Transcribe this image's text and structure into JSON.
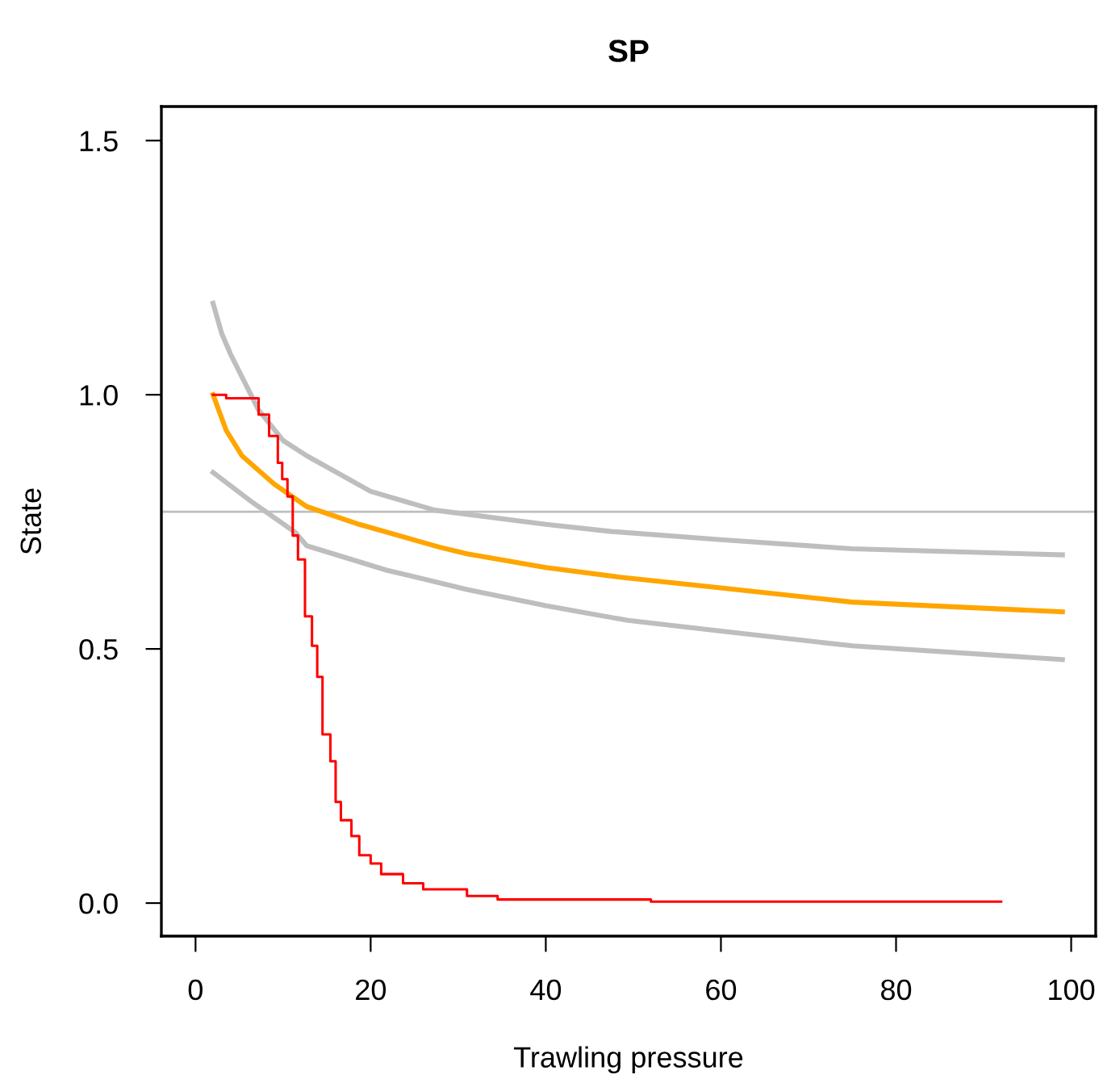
{
  "chart_data": {
    "type": "line",
    "title": "SP",
    "xlabel": "Trawling pressure",
    "ylabel": "State",
    "xlim": [
      -3.9,
      102.8
    ],
    "ylim": [
      -0.065,
      1.567
    ],
    "xticks": [
      0,
      20,
      40,
      60,
      80,
      100
    ],
    "yticks": [
      {
        "value": 0,
        "label": "0.0"
      },
      {
        "value": 0.5,
        "label": "0.5"
      },
      {
        "value": 1,
        "label": "1.0"
      },
      {
        "value": 1.5,
        "label": "1.5"
      }
    ],
    "ref_lines": [
      {
        "axis": "y",
        "value": 0.77,
        "color": "#bebebe"
      }
    ],
    "series": [
      {
        "color": "#bebebe",
        "x": [
          2,
          3,
          4,
          7.2,
          10,
          12.7,
          20,
          27.3,
          40,
          47.5,
          60,
          75,
          99
        ],
        "values": [
          1.18,
          1.12,
          1.08,
          0.97,
          0.91,
          0.88,
          0.81,
          0.773,
          0.745,
          0.731,
          0.715,
          0.697,
          0.685
        ]
      },
      {
        "color": "#bebebe",
        "x": [
          2,
          6.6,
          11.4,
          12.7,
          21.8,
          31,
          40,
          49.4,
          60,
          75,
          99
        ],
        "values": [
          0.847,
          0.787,
          0.729,
          0.703,
          0.655,
          0.617,
          0.585,
          0.556,
          0.535,
          0.506,
          0.479
        ]
      },
      {
        "color": "#ffa500",
        "x": [
          2,
          3.5,
          5.3,
          9,
          12.7,
          18.7,
          27.9,
          31,
          40,
          48.5,
          60,
          75,
          99
        ],
        "values": [
          1.0,
          0.93,
          0.88,
          0.824,
          0.78,
          0.745,
          0.7,
          0.687,
          0.66,
          0.641,
          0.62,
          0.592,
          0.573
        ]
      },
      {
        "type": "step",
        "color": "#ff0000",
        "x": [
          2,
          3.5,
          7.2,
          8.4,
          9.4,
          9.9,
          10.5,
          11.1,
          11.7,
          12.5,
          13.3,
          13.9,
          14.5,
          15.4,
          16.0,
          16.6,
          17.8,
          18.7,
          20,
          21.2,
          23.7,
          26,
          31,
          34.5,
          52,
          92
        ],
        "values": [
          1.0,
          0.993,
          0.961,
          0.919,
          0.866,
          0.834,
          0.8,
          0.723,
          0.676,
          0.564,
          0.506,
          0.445,
          0.332,
          0.279,
          0.199,
          0.163,
          0.132,
          0.094,
          0.078,
          0.057,
          0.039,
          0.027,
          0.014,
          0.007,
          0.003,
          0.003
        ]
      }
    ]
  }
}
